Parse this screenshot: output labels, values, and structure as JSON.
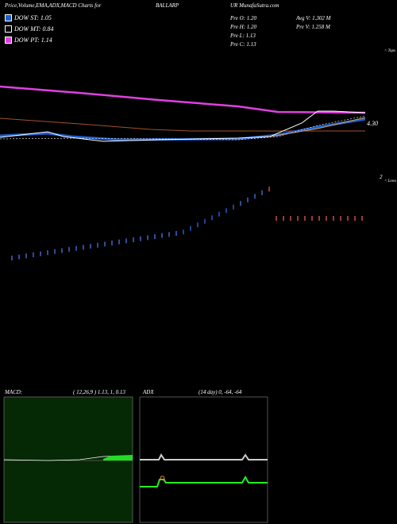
{
  "header": {
    "title": "Price,Volume,EMA,ADX,MACD Charts for",
    "symbol": "BALLARP",
    "site": "UR MunafaSutra.com"
  },
  "dow": [
    "DOW ST: 1.05",
    "DOW MT: 0.84",
    "DOW PT: 1.14"
  ],
  "prev": [
    "Pre  O: 1.20",
    "Pre  H: 1.20",
    "Pre  L: 1.13",
    "Pre  C: 1.13"
  ],
  "volume": [
    "Avg V: 1.302  M",
    "Pre  V: 1.258  M"
  ],
  "price_panel": {
    "price_label": "4.30",
    "scale_label": "2",
    "tops_label": "< Tops",
    "lows_label": "< Lows"
  },
  "macd": {
    "label": "MACD:",
    "params": "( 12,26,9 ) 1.13,  1,  0.13"
  },
  "adx": {
    "label": "ADX",
    "params": "(14  day) 0, -64, -64"
  }
}
